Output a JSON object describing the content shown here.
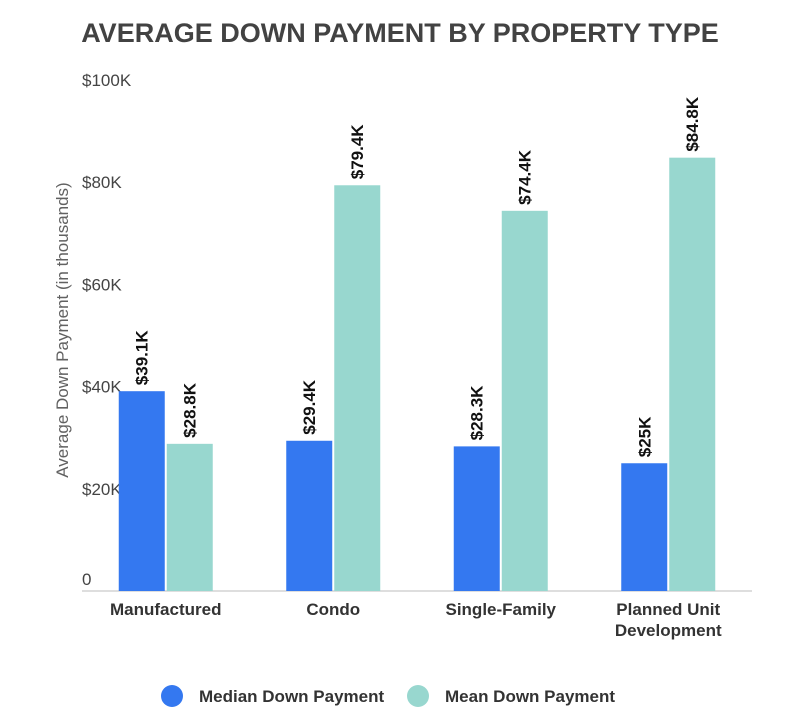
{
  "chart_data": {
    "type": "bar",
    "title": "AVERAGE DOWN PAYMENT BY PROPERTY TYPE",
    "xlabel": "",
    "ylabel": "Average Down Payment (in thousands)",
    "ylim": [
      0,
      100
    ],
    "y_ticks": [
      {
        "value": 0,
        "label": "0"
      },
      {
        "value": 20,
        "label": "$20K"
      },
      {
        "value": 40,
        "label": "$40K"
      },
      {
        "value": 60,
        "label": "$60K"
      },
      {
        "value": 80,
        "label": "$80K"
      },
      {
        "value": 100,
        "label": "$100K"
      }
    ],
    "categories": [
      [
        "Manufactured"
      ],
      [
        "Condo"
      ],
      [
        "Single-Family"
      ],
      [
        "Planned Unit",
        "Development"
      ]
    ],
    "series": [
      {
        "name": "Median Down Payment",
        "color": "#3478f0",
        "values": [
          39.1,
          29.4,
          28.3,
          25
        ],
        "labels": [
          "$39.1K",
          "$29.4K",
          "$28.3K",
          "$25K"
        ]
      },
      {
        "name": "Mean Down Payment",
        "color": "#98d7cf",
        "values": [
          28.8,
          79.4,
          74.4,
          84.8
        ],
        "labels": [
          "$28.8K",
          "$79.4K",
          "$74.4K",
          "$84.8K"
        ]
      }
    ],
    "grid": false,
    "legend_position": "bottom-center"
  }
}
